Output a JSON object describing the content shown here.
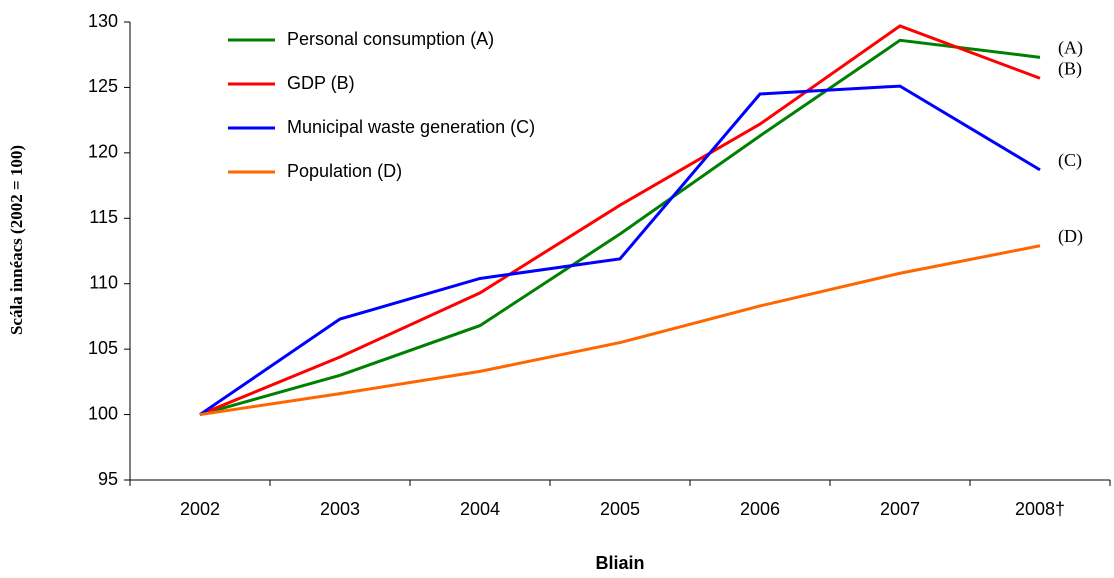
{
  "chart_data": {
    "type": "line",
    "x_label": "Bliain",
    "y_label": "Scála innéacs (2002 = 100)",
    "categories": [
      "2002",
      "2003",
      "2004",
      "2005",
      "2006",
      "2007",
      "2008†"
    ],
    "series": [
      {
        "name": "Personal consumption (A)",
        "color": "#008000",
        "values": [
          100,
          103,
          106.8,
          113.8,
          121.3,
          128.6,
          127.3
        ]
      },
      {
        "name": "GDP (B)",
        "color": "#ff0000",
        "values": [
          100,
          104.4,
          109.3,
          116,
          122.2,
          129.7,
          125.7
        ]
      },
      {
        "name": "Municipal waste generation (C)",
        "color": "#0000ff",
        "values": [
          100,
          107.3,
          110.4,
          111.9,
          124.5,
          125.1,
          118.7
        ]
      },
      {
        "name": "Population (D)",
        "color": "#ff6600",
        "values": [
          100,
          101.6,
          103.3,
          105.5,
          108.3,
          110.8,
          112.9
        ]
      }
    ],
    "annotations": [
      "(A)",
      "(B)",
      "(C)",
      "(D)"
    ],
    "ylim": [
      95,
      130
    ],
    "yticks": [
      95,
      100,
      105,
      110,
      115,
      120,
      125,
      130
    ],
    "grid": false,
    "legend": "upper left"
  }
}
